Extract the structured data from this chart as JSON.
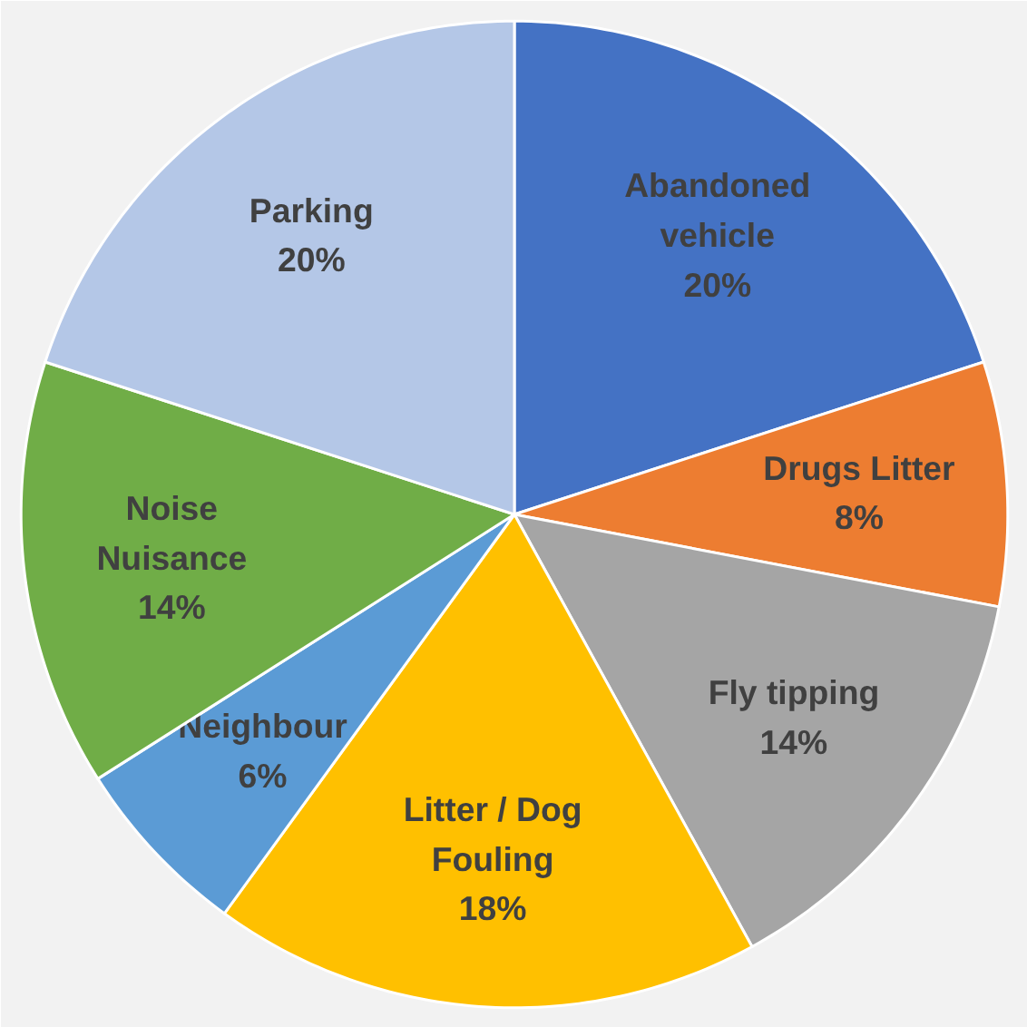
{
  "chart_data": {
    "type": "pie",
    "categories": [
      "Abandoned vehicle",
      "Drugs Litter",
      "Fly tipping",
      "Litter / Dog Fouling",
      "Neighbour",
      "Noise Nuisance",
      "Parking"
    ],
    "values": [
      20,
      8,
      14,
      18,
      6,
      14,
      20
    ],
    "colors": [
      "#4472c4",
      "#ed7d31",
      "#a5a5a5",
      "#ffc000",
      "#5b9bd5",
      "#70ad47",
      "#b4c7e7"
    ],
    "value_labels": [
      "20%",
      "8%",
      "14%",
      "18%",
      "6%",
      "14%",
      "20%"
    ],
    "legend": false
  }
}
